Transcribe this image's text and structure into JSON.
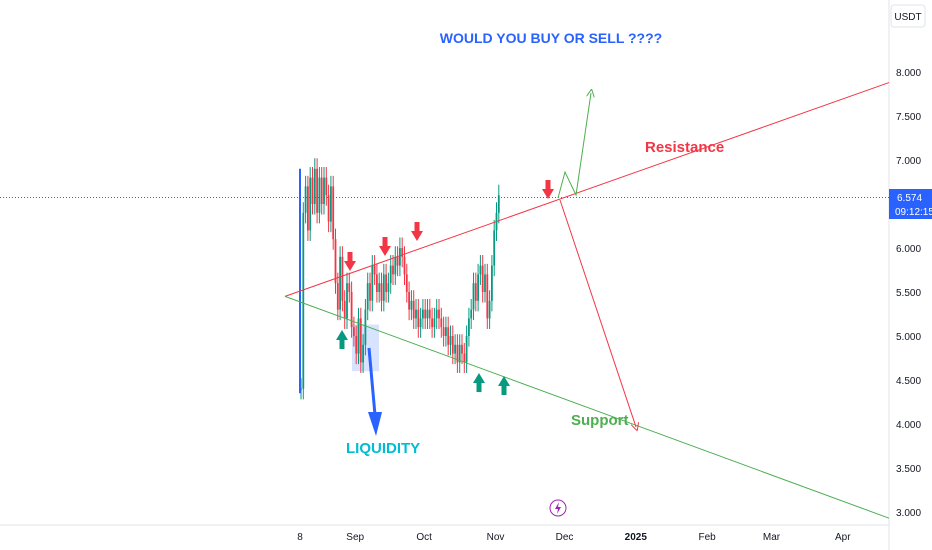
{
  "chart_data": {
    "type": "candlestick",
    "title": "WOULD YOU BUY OR SELL ????",
    "currency": "USDT",
    "last_price": "6.574",
    "countdown": "09:12:15",
    "y_axis": {
      "ylim": [
        2.93,
        8.55
      ],
      "ticks": [
        "8.000",
        "7.500",
        "7.000",
        "6.000",
        "5.500",
        "5.000",
        "4.500",
        "4.000",
        "3.500",
        "3.000"
      ],
      "tick_values": [
        8.0,
        7.5,
        7.0,
        6.0,
        5.5,
        5.0,
        4.5,
        4.0,
        3.5,
        3.0
      ]
    },
    "x_axis": {
      "ticks": [
        "8",
        "Sep",
        "Oct",
        "Nov",
        "Dec",
        "2025",
        "Feb",
        "Mar",
        "Apr"
      ],
      "tick_days": [
        0,
        24,
        54,
        85,
        115,
        146,
        177,
        205,
        236
      ]
    },
    "candles_sample": {
      "description": "daily OHLC closes",
      "start_day": 0,
      "closes": [
        4.4,
        6.4,
        6.7,
        6.2,
        6.8,
        6.5,
        6.9,
        6.4,
        6.8,
        6.5,
        6.8,
        6.6,
        6.3,
        6.7,
        6.1,
        5.6,
        5.3,
        5.9,
        5.4,
        5.2,
        5.6,
        5.5,
        5.1,
        5.0,
        4.8,
        5.2,
        4.7,
        4.9,
        5.3,
        5.6,
        5.4,
        5.8,
        5.7,
        5.5,
        5.6,
        5.4,
        5.7,
        5.5,
        5.6,
        5.8,
        5.7,
        5.9,
        5.8,
        6.0,
        5.9,
        5.7,
        5.5,
        5.3,
        5.4,
        5.2,
        5.3,
        5.1,
        5.2,
        5.3,
        5.2,
        5.3,
        5.2,
        5.1,
        5.2,
        5.3,
        5.2,
        5.1,
        5.0,
        5.1,
        4.9,
        5.0,
        4.8,
        4.9,
        4.7,
        4.9,
        4.8,
        4.7,
        5.0,
        5.2,
        5.3,
        5.6,
        5.4,
        5.7,
        5.8,
        5.5,
        5.7,
        5.2,
        5.4,
        5.8,
        6.2,
        6.4,
        6.6
      ],
      "price_line": 6.574
    },
    "lines": [
      {
        "name": "Resistance",
        "color": "#f23645",
        "from": [
          -3,
          5.45
        ],
        "to": [
          255,
          7.88
        ]
      },
      {
        "name": "Support",
        "color": "#4caf50",
        "from": [
          -3,
          5.45
        ],
        "to": [
          255,
          2.93
        ]
      }
    ],
    "annotations": {
      "resistance_label": "Resistance",
      "support_label": "Support",
      "liquidity_label": "LIQUIDITY"
    },
    "colors": {
      "up": "#089981",
      "down": "#f23645",
      "title": "#2962ff",
      "liquidity": "#00bcd4",
      "liquidity_arrow": "#2962ff",
      "price_tag": "#2962ff",
      "resistance": "#f23645",
      "support": "#4caf50"
    }
  }
}
